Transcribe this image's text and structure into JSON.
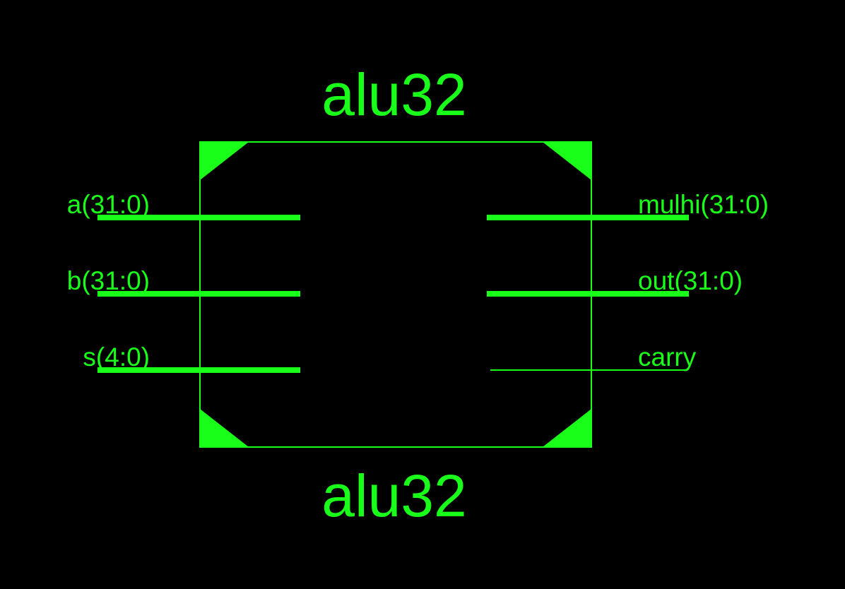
{
  "colors": {
    "background": "#000000",
    "symbol": "#1aff1a"
  },
  "symbol": {
    "top_label": "alu32",
    "bottom_label": "alu32",
    "inputs": [
      {
        "name": "a(31:0)",
        "bus": true
      },
      {
        "name": "b(31:0)",
        "bus": true
      },
      {
        "name": "s(4:0)",
        "bus": true
      }
    ],
    "outputs": [
      {
        "name": "mulhi(31:0)",
        "bus": true
      },
      {
        "name": "out(31:0)",
        "bus": true
      },
      {
        "name": "carry",
        "bus": false
      }
    ]
  }
}
